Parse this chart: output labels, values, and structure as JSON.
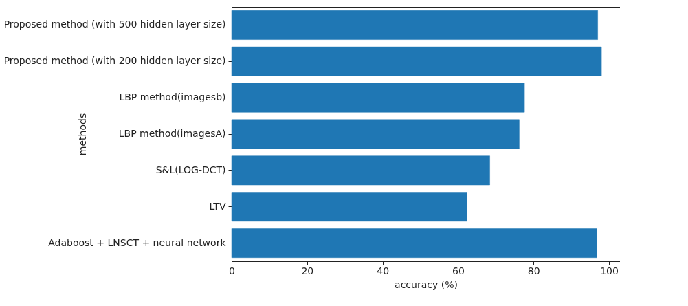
{
  "chart_data": {
    "type": "bar",
    "orientation": "horizontal",
    "xlabel": "accuracy (%)",
    "ylabel": "methods",
    "categories": [
      "Proposed method (with 500 hidden layer size)",
      "Proposed method (with 200 hidden layer size)",
      "LBP method(imagesb)",
      "LBP method(imagesA)",
      "S&L(LOG-DCT)",
      "LTV",
      "Adaboost + LNSCT + neural network"
    ],
    "values": [
      97.0,
      98.0,
      77.6,
      76.2,
      68.4,
      62.3,
      96.8
    ],
    "color": "#1f77b4",
    "xlim": [
      0,
      102.9
    ],
    "xticks": [
      0,
      20,
      40,
      60,
      80,
      100
    ],
    "grid": false
  }
}
